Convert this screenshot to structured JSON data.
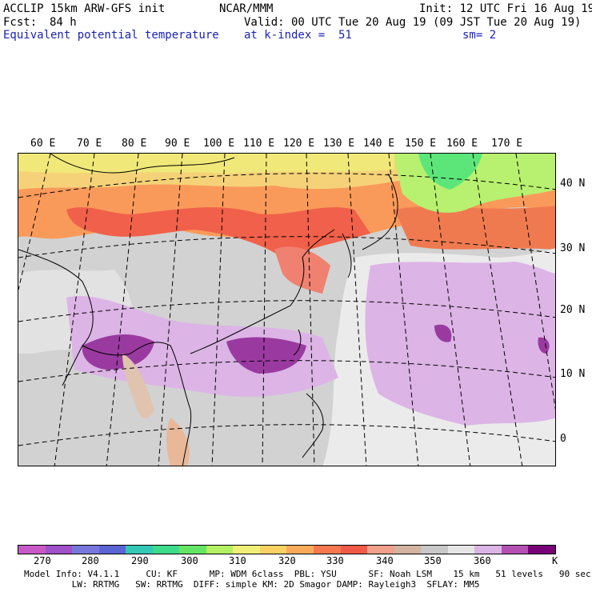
{
  "header": {
    "model": "ACCLIP 15km ARW-GFS init",
    "center": "NCAR/MMM",
    "init": "Init: 12 UTC Fri 16 Aug 19",
    "fcst_label": "Fcst:",
    "fcst_value": "84 h",
    "valid": "Valid: 00 UTC Tue 20 Aug 19 (09 JST Tue 20 Aug 19)",
    "field": "Equivalent potential temperature",
    "level": "at k-index =  51",
    "smoothing": "sm= 2"
  },
  "map": {
    "lon_labels": [
      "60 E",
      "70 E",
      "80 E",
      "90 E",
      "100 E",
      "110 E",
      "120 E",
      "130 E",
      "140 E",
      "150 E",
      "160 E",
      "170 E"
    ],
    "lat_labels": [
      "40 N",
      "30 N",
      "20 N",
      "10 N",
      "0"
    ]
  },
  "colorbar": {
    "unit": "K",
    "labels": [
      "270",
      "280",
      "290",
      "300",
      "310",
      "320",
      "330",
      "340",
      "350",
      "360"
    ],
    "colors": [
      "#c85ac8",
      "#a050c8",
      "#7878dc",
      "#5a64d2",
      "#32c8b4",
      "#3cdc8c",
      "#64e664",
      "#b4f064",
      "#f0f078",
      "#fad264",
      "#faaa5a",
      "#fa7850",
      "#f05a46",
      "#f0a08c",
      "#d2b4a0",
      "#c8c8c8",
      "#e6e6e6",
      "#dcb4e6",
      "#b450b4",
      "#780078"
    ]
  },
  "footer": {
    "line1": "Model Info: V4.1.1     CU: KF      MP: WDM 6class  PBL: YSU      SF: Noah LSM    15 km   51 levels   90 sec",
    "line2": "         LW: RRTMG   SW: RRTMG  DIFF: simple KM: 2D Smagor DAMP: Rayleigh3  SFLAY: MM5"
  }
}
